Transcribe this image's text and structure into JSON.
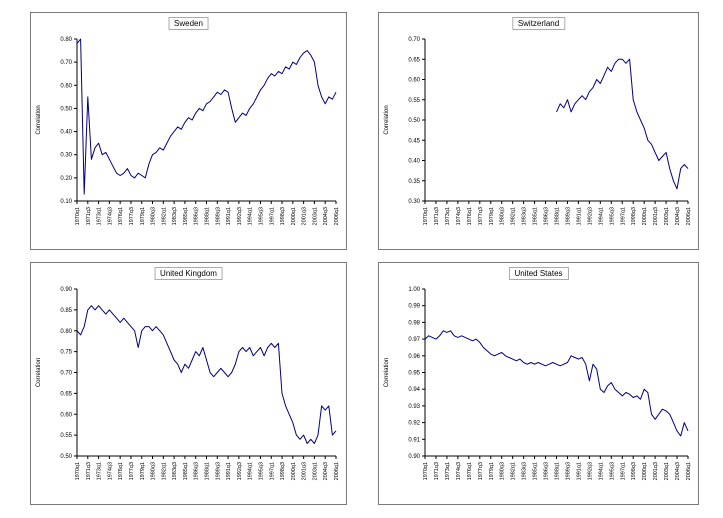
{
  "style": {
    "line_color": "#000080",
    "axis_color": "#000000",
    "text_color": "#000000",
    "panel_border_color": "#7a7a7a"
  },
  "chart_data": [
    {
      "type": "line",
      "title": "Sweden",
      "ylabel": "Correlation",
      "ylim": [
        0.1,
        0.8
      ],
      "ytick_step": 0.1,
      "ytick_decimals": 2,
      "grid": false,
      "legend": "none",
      "x_labels": [
        "1970q1",
        "1971q3",
        "1973q1",
        "1974q3",
        "1976q1",
        "1977q3",
        "1979q1",
        "1980q3",
        "1982q1",
        "1983q3",
        "1985q1",
        "1986q3",
        "1988q1",
        "1989q3",
        "1991q1",
        "1992q3",
        "1994q1",
        "1995q3",
        "1997q1",
        "1998q3",
        "2000q1",
        "2001q3",
        "2003q1",
        "2004q3",
        "2006q1"
      ],
      "values": [
        0.78,
        0.8,
        0.13,
        0.55,
        0.28,
        0.33,
        0.35,
        0.3,
        0.31,
        0.28,
        0.25,
        0.22,
        0.21,
        0.22,
        0.24,
        0.21,
        0.2,
        0.22,
        0.21,
        0.2,
        0.26,
        0.3,
        0.31,
        0.33,
        0.32,
        0.35,
        0.38,
        0.4,
        0.42,
        0.41,
        0.44,
        0.46,
        0.45,
        0.48,
        0.5,
        0.49,
        0.52,
        0.53,
        0.55,
        0.57,
        0.56,
        0.58,
        0.57,
        0.5,
        0.44,
        0.46,
        0.48,
        0.47,
        0.5,
        0.52,
        0.55,
        0.58,
        0.6,
        0.63,
        0.65,
        0.64,
        0.66,
        0.65,
        0.68,
        0.67,
        0.7,
        0.69,
        0.72,
        0.74,
        0.75,
        0.73,
        0.7,
        0.6,
        0.55,
        0.52,
        0.55,
        0.54,
        0.57
      ]
    },
    {
      "type": "line",
      "title": "Switzerland",
      "ylabel": "Correlation",
      "ylim": [
        0.3,
        0.7
      ],
      "ytick_step": 0.05,
      "ytick_decimals": 2,
      "grid": false,
      "legend": "none",
      "x_labels": [
        "1970q1",
        "1971q3",
        "1973q1",
        "1974q3",
        "1976q1",
        "1977q3",
        "1979q1",
        "1980q3",
        "1982q1",
        "1983q3",
        "1985q1",
        "1986q3",
        "1988q1",
        "1989q3",
        "1991q1",
        "1992q3",
        "1994q1",
        "1995q3",
        "1997q1",
        "1998q3",
        "2000q1",
        "2001q3",
        "2003q1",
        "2004q3",
        "2006q1"
      ],
      "values": [
        null,
        null,
        null,
        null,
        null,
        null,
        null,
        null,
        null,
        null,
        null,
        null,
        null,
        null,
        null,
        null,
        null,
        null,
        null,
        null,
        null,
        null,
        null,
        null,
        null,
        null,
        null,
        null,
        null,
        null,
        null,
        null,
        null,
        null,
        null,
        null,
        0.52,
        0.54,
        0.53,
        0.55,
        0.52,
        0.54,
        0.55,
        0.56,
        0.55,
        0.57,
        0.58,
        0.6,
        0.59,
        0.61,
        0.63,
        0.62,
        0.64,
        0.65,
        0.65,
        0.64,
        0.65,
        0.55,
        0.52,
        0.5,
        0.48,
        0.45,
        0.44,
        0.42,
        0.4,
        0.41,
        0.42,
        0.38,
        0.35,
        0.33,
        0.38,
        0.39,
        0.38
      ]
    },
    {
      "type": "line",
      "title": "United Kingdom",
      "ylabel": "Correlation",
      "ylim": [
        0.5,
        0.9
      ],
      "ytick_step": 0.05,
      "ytick_decimals": 2,
      "grid": false,
      "legend": "none",
      "x_labels": [
        "1970q1",
        "1971q3",
        "1973q1",
        "1974q3",
        "1976q1",
        "1977q3",
        "1979q1",
        "1980q3",
        "1982q1",
        "1983q3",
        "1985q1",
        "1986q3",
        "1988q1",
        "1989q3",
        "1991q1",
        "1992q3",
        "1994q1",
        "1995q3",
        "1997q1",
        "1998q3",
        "2000q1",
        "2001q3",
        "2003q1",
        "2004q3",
        "2006q1"
      ],
      "values": [
        0.8,
        0.79,
        0.81,
        0.85,
        0.86,
        0.85,
        0.86,
        0.85,
        0.84,
        0.85,
        0.84,
        0.83,
        0.82,
        0.83,
        0.82,
        0.81,
        0.8,
        0.76,
        0.8,
        0.81,
        0.81,
        0.8,
        0.81,
        0.8,
        0.79,
        0.77,
        0.75,
        0.73,
        0.72,
        0.7,
        0.72,
        0.71,
        0.73,
        0.75,
        0.74,
        0.76,
        0.73,
        0.7,
        0.69,
        0.7,
        0.71,
        0.7,
        0.69,
        0.7,
        0.72,
        0.75,
        0.76,
        0.75,
        0.76,
        0.74,
        0.75,
        0.76,
        0.74,
        0.76,
        0.77,
        0.76,
        0.77,
        0.65,
        0.62,
        0.6,
        0.58,
        0.55,
        0.54,
        0.55,
        0.53,
        0.54,
        0.53,
        0.55,
        0.62,
        0.61,
        0.62,
        0.55,
        0.56
      ]
    },
    {
      "type": "line",
      "title": "United States",
      "ylabel": "Correlation",
      "ylim": [
        0.9,
        1.0
      ],
      "ytick_step": 0.01,
      "ytick_decimals": 2,
      "grid": false,
      "legend": "none",
      "x_labels": [
        "1970q1",
        "1971q3",
        "1973q1",
        "1974q3",
        "1976q1",
        "1977q3",
        "1979q1",
        "1980q3",
        "1982q1",
        "1983q3",
        "1985q1",
        "1986q3",
        "1988q1",
        "1989q3",
        "1991q1",
        "1992q3",
        "1994q1",
        "1995q3",
        "1997q1",
        "1998q3",
        "2000q1",
        "2001q3",
        "2003q1",
        "2004q3",
        "2006q1"
      ],
      "values": [
        0.97,
        0.972,
        0.971,
        0.97,
        0.972,
        0.975,
        0.974,
        0.975,
        0.972,
        0.971,
        0.972,
        0.971,
        0.97,
        0.969,
        0.97,
        0.968,
        0.965,
        0.963,
        0.961,
        0.96,
        0.961,
        0.962,
        0.96,
        0.959,
        0.958,
        0.957,
        0.958,
        0.956,
        0.955,
        0.956,
        0.955,
        0.956,
        0.955,
        0.954,
        0.955,
        0.956,
        0.955,
        0.954,
        0.955,
        0.956,
        0.96,
        0.959,
        0.958,
        0.959,
        0.955,
        0.945,
        0.955,
        0.952,
        0.94,
        0.938,
        0.942,
        0.944,
        0.94,
        0.938,
        0.936,
        0.938,
        0.937,
        0.935,
        0.936,
        0.934,
        0.94,
        0.938,
        0.925,
        0.922,
        0.925,
        0.928,
        0.927,
        0.925,
        0.92,
        0.915,
        0.912,
        0.92,
        0.915
      ]
    }
  ]
}
